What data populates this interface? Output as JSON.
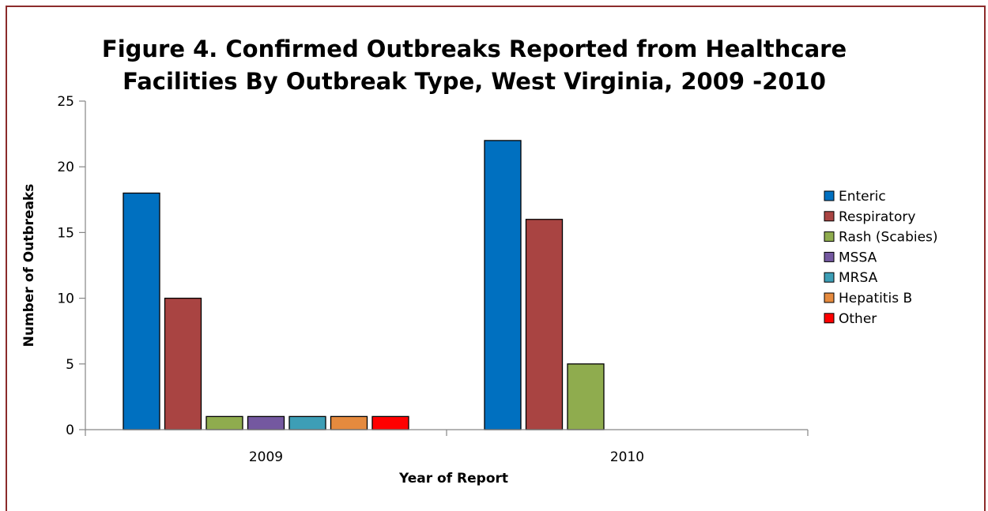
{
  "chart_data": {
    "type": "bar",
    "title_lines": [
      "Figure 4. Confirmed Outbreaks Reported from Healthcare",
      "Facilities By Outbreak Type, West Virginia, 2009 -2010"
    ],
    "xlabel": "Year of Report",
    "ylabel": "Number of Outbreaks",
    "ylim": [
      0,
      25
    ],
    "yticks": [
      "0",
      "5",
      "10",
      "15",
      "20",
      "25"
    ],
    "categories": [
      "2009",
      "2010"
    ],
    "grid": false,
    "legend_position": "right",
    "series": [
      {
        "name": "Enteric",
        "color": "#0070c0",
        "values": [
          18,
          22
        ]
      },
      {
        "name": "Respiratory",
        "color": "#a94442",
        "values": [
          10,
          16
        ]
      },
      {
        "name": "Rash (Scabies)",
        "color": "#8fac4e",
        "values": [
          1,
          5
        ]
      },
      {
        "name": "MSSA",
        "color": "#7458a0",
        "values": [
          1,
          0
        ]
      },
      {
        "name": "MRSA",
        "color": "#3d9eb6",
        "values": [
          1,
          0
        ]
      },
      {
        "name": "Hepatitis B",
        "color": "#e58a3e",
        "values": [
          1,
          0
        ]
      },
      {
        "name": "Other",
        "color": "#ff0000",
        "values": [
          1,
          0
        ]
      }
    ]
  }
}
